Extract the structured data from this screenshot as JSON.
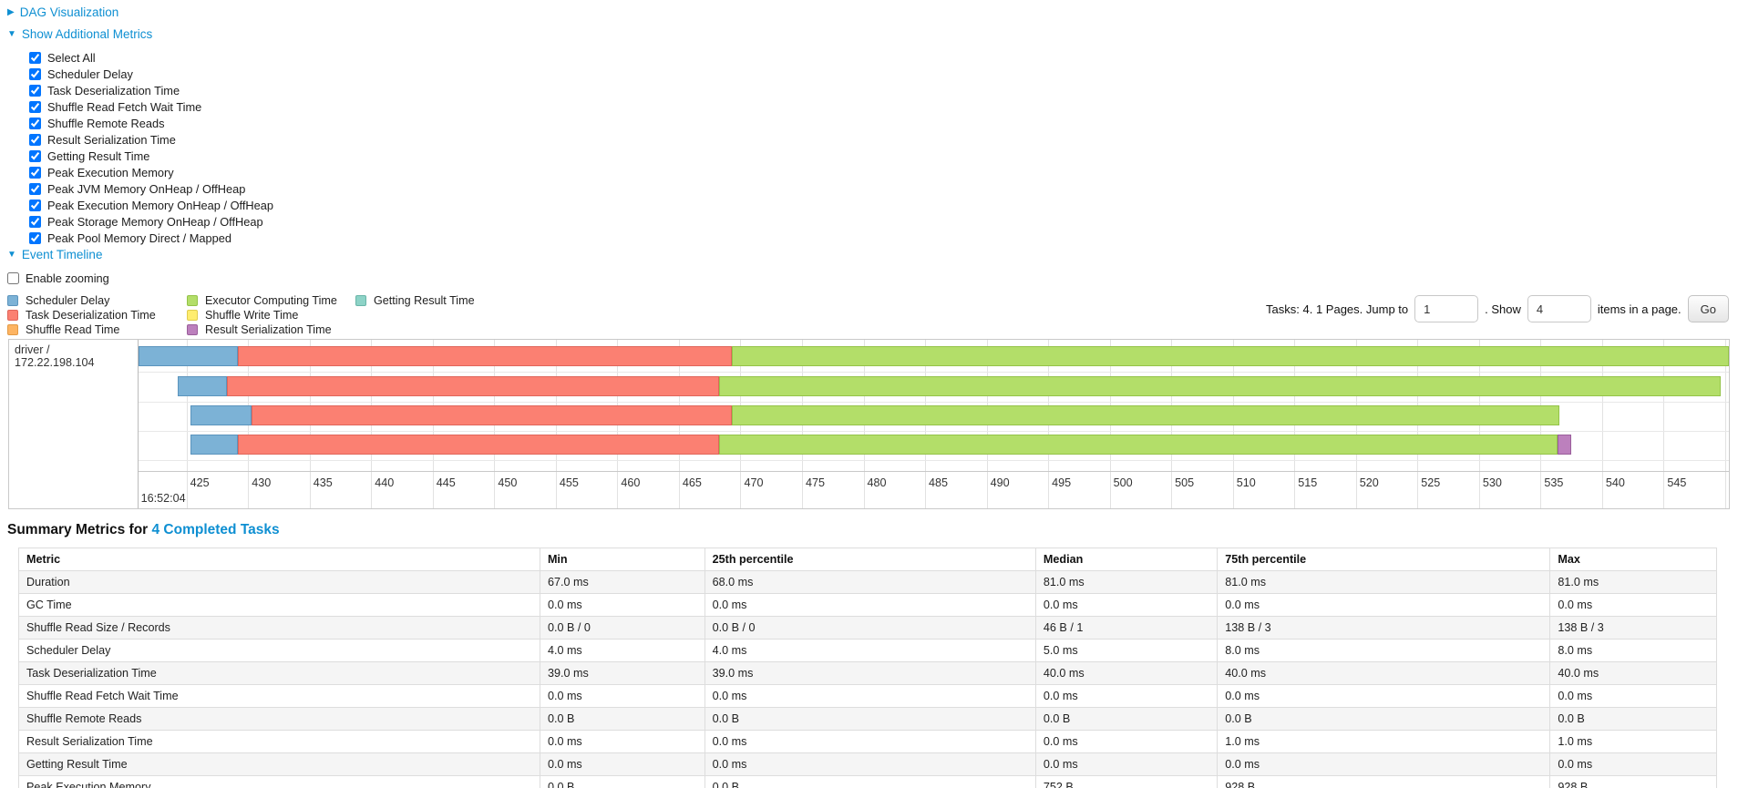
{
  "colors": {
    "link_blue": "#0e8fd2",
    "palette": {
      "scheduler_delay": {
        "fill": "#7CB2D6",
        "border": "#5b94bd",
        "label": "Scheduler Delay"
      },
      "task_deserialization": {
        "fill": "#FB8072",
        "border": "#e0655a",
        "label": "Task Deserialization Time"
      },
      "shuffle_read": {
        "fill": "#FDB462",
        "border": "#e39a45",
        "label": "Shuffle Read Time"
      },
      "executor_computing": {
        "fill": "#B3DE69",
        "border": "#94c348",
        "label": "Executor Computing Time"
      },
      "shuffle_write": {
        "fill": "#FFED6F",
        "border": "#e0cc4e",
        "label": "Shuffle Write Time"
      },
      "result_serialization": {
        "fill": "#BC80BD",
        "border": "#9a5e9b",
        "label": "Result Serialization Time"
      },
      "getting_result": {
        "fill": "#8DD3C7",
        "border": "#69b5a8",
        "label": "Getting Result Time"
      }
    }
  },
  "toggles": {
    "dag": {
      "arrow": "▶",
      "label": "DAG Visualization"
    },
    "metrics": {
      "arrow": "▼",
      "label": "Show Additional Metrics"
    },
    "event_timeline": {
      "arrow": "▼",
      "label": "Event Timeline"
    }
  },
  "metrics_panel": {
    "items": [
      {
        "label": "Select All",
        "checked": true
      },
      {
        "label": "Scheduler Delay",
        "checked": true
      },
      {
        "label": "Task Deserialization Time",
        "checked": true
      },
      {
        "label": "Shuffle Read Fetch Wait Time",
        "checked": true
      },
      {
        "label": "Shuffle Remote Reads",
        "checked": true
      },
      {
        "label": "Result Serialization Time",
        "checked": true
      },
      {
        "label": "Getting Result Time",
        "checked": true
      },
      {
        "label": "Peak Execution Memory",
        "checked": true
      },
      {
        "label": "Peak JVM Memory OnHeap / OffHeap",
        "checked": true
      },
      {
        "label": "Peak Execution Memory OnHeap / OffHeap",
        "checked": true
      },
      {
        "label": "Peak Storage Memory OnHeap / OffHeap",
        "checked": true
      },
      {
        "label": "Peak Pool Memory Direct / Mapped",
        "checked": true
      }
    ]
  },
  "enable_zooming": {
    "label": "Enable zooming",
    "checked": false
  },
  "legend": {
    "order": [
      "scheduler_delay",
      "task_deserialization",
      "shuffle_read",
      "executor_computing",
      "shuffle_write",
      "result_serialization",
      "getting_result"
    ]
  },
  "pagination": {
    "prefix": "Tasks: 4. 1 Pages. Jump to",
    "jump_value": "1",
    "mid": ". Show",
    "show_value": "4",
    "suffix": "items in a page.",
    "go_label": "Go"
  },
  "chart_data": {
    "type": "timeline",
    "title": "Event Timeline",
    "row_label": "driver / 172.22.198.104",
    "axis": {
      "min": 421.1,
      "max": 550.3,
      "tick_start": 425,
      "tick_end": 550,
      "tick_step": 5,
      "base_time_label": "16:52:04"
    },
    "bars": [
      {
        "segments": [
          {
            "kind": "scheduler_delay",
            "start": 421.1,
            "end": 429.2
          },
          {
            "kind": "task_deserialization",
            "start": 429.2,
            "end": 469.3
          },
          {
            "kind": "executor_computing",
            "start": 469.3,
            "end": 550.4
          }
        ]
      },
      {
        "segments": [
          {
            "kind": "scheduler_delay",
            "start": 424.3,
            "end": 428.3
          },
          {
            "kind": "task_deserialization",
            "start": 428.3,
            "end": 468.3
          },
          {
            "kind": "executor_computing",
            "start": 468.3,
            "end": 549.6
          }
        ]
      },
      {
        "segments": [
          {
            "kind": "scheduler_delay",
            "start": 425.3,
            "end": 430.3
          },
          {
            "kind": "task_deserialization",
            "start": 430.3,
            "end": 469.3
          },
          {
            "kind": "executor_computing",
            "start": 469.3,
            "end": 536.5
          }
        ]
      },
      {
        "segments": [
          {
            "kind": "scheduler_delay",
            "start": 425.3,
            "end": 429.2
          },
          {
            "kind": "task_deserialization",
            "start": 429.2,
            "end": 468.3
          },
          {
            "kind": "executor_computing",
            "start": 468.3,
            "end": 536.4
          },
          {
            "kind": "result_serialization",
            "start": 536.4,
            "end": 537.5
          }
        ]
      }
    ]
  },
  "summary": {
    "heading_prefix": "Summary Metrics for ",
    "heading_link": "4 Completed Tasks",
    "columns": [
      "Metric",
      "Min",
      "25th percentile",
      "Median",
      "75th percentile",
      "Max"
    ],
    "col_widths_pct": [
      30.7,
      9.7,
      19.5,
      10.7,
      19.6,
      9.8
    ],
    "rows": [
      {
        "metric": "Duration",
        "values": [
          "67.0 ms",
          "68.0 ms",
          "81.0 ms",
          "81.0 ms",
          "81.0 ms"
        ]
      },
      {
        "metric": "GC Time",
        "values": [
          "0.0 ms",
          "0.0 ms",
          "0.0 ms",
          "0.0 ms",
          "0.0 ms"
        ]
      },
      {
        "metric": "Shuffle Read Size / Records",
        "values": [
          "0.0 B / 0",
          "0.0 B / 0",
          "46 B / 1",
          "138 B / 3",
          "138 B / 3"
        ]
      },
      {
        "metric": "Scheduler Delay",
        "values": [
          "4.0 ms",
          "4.0 ms",
          "5.0 ms",
          "8.0 ms",
          "8.0 ms"
        ]
      },
      {
        "metric": "Task Deserialization Time",
        "values": [
          "39.0 ms",
          "39.0 ms",
          "40.0 ms",
          "40.0 ms",
          "40.0 ms"
        ]
      },
      {
        "metric": "Shuffle Read Fetch Wait Time",
        "values": [
          "0.0 ms",
          "0.0 ms",
          "0.0 ms",
          "0.0 ms",
          "0.0 ms"
        ]
      },
      {
        "metric": "Shuffle Remote Reads",
        "values": [
          "0.0 B",
          "0.0 B",
          "0.0 B",
          "0.0 B",
          "0.0 B"
        ]
      },
      {
        "metric": "Result Serialization Time",
        "values": [
          "0.0 ms",
          "0.0 ms",
          "0.0 ms",
          "1.0 ms",
          "1.0 ms"
        ]
      },
      {
        "metric": "Getting Result Time",
        "values": [
          "0.0 ms",
          "0.0 ms",
          "0.0 ms",
          "0.0 ms",
          "0.0 ms"
        ]
      },
      {
        "metric": "Peak Execution Memory",
        "values": [
          "0.0 B",
          "0.0 B",
          "752 B",
          "928 B",
          "928 B"
        ]
      }
    ]
  }
}
